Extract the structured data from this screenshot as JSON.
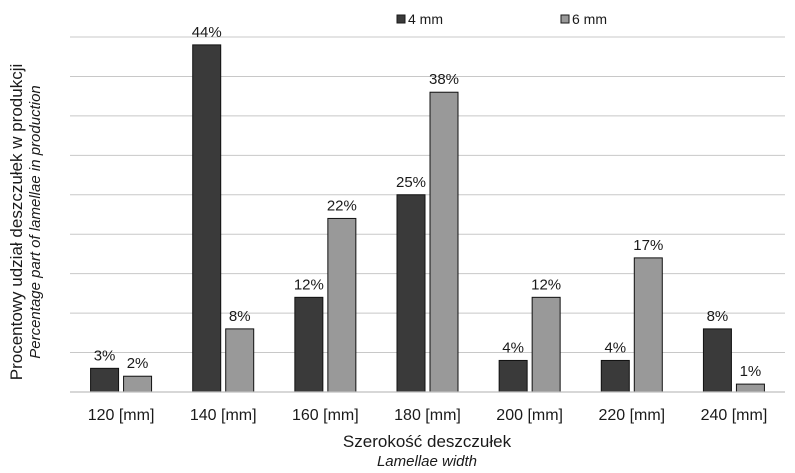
{
  "chart_data": {
    "type": "bar",
    "categories": [
      "120 [mm]",
      "140 [mm]",
      "160 [mm]",
      "180 [mm]",
      "200 [mm]",
      "220 [mm]",
      "240 [mm]"
    ],
    "series": [
      {
        "name": "4 mm",
        "values": [
          3,
          44,
          12,
          25,
          4,
          4,
          8
        ],
        "labels": [
          "3%",
          "44%",
          "12%",
          "25%",
          "4%",
          "4%",
          "8%"
        ],
        "color": "#3a3a3a"
      },
      {
        "name": "6 mm",
        "values": [
          2,
          8,
          22,
          38,
          12,
          17,
          1
        ],
        "labels": [
          "2%",
          "8%",
          "22%",
          "38%",
          "12%",
          "17%",
          "1%"
        ],
        "color": "#999999"
      }
    ],
    "xlabel": "Szerokość deszczułek",
    "xlabel_sub": "Lamellae width",
    "ylabel": "Procentowy udział deszczułek w produkcji",
    "ylabel_sub": "Percentage part of lamellae in production",
    "ylim": [
      0,
      45
    ],
    "y_gridline_step": 5,
    "grid": true,
    "legend_position": "top-right"
  }
}
